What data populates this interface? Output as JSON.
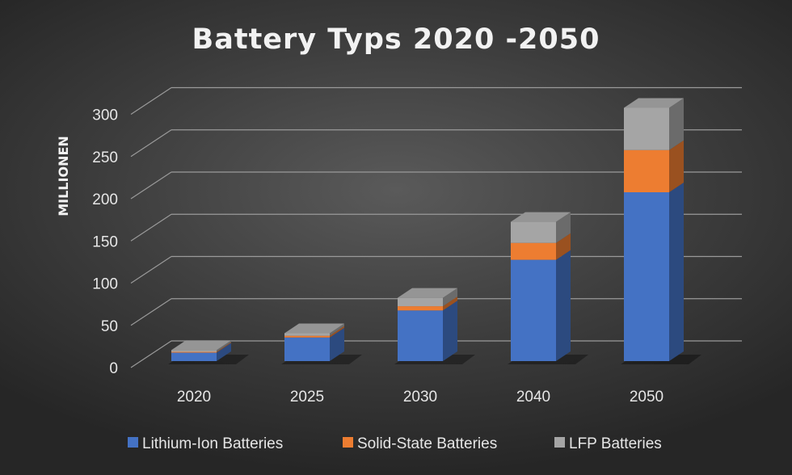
{
  "chart_data": {
    "type": "bar",
    "stacked": true,
    "three_d": true,
    "title": "Battery Typs 2020 -2050",
    "ylabel": "MILLIONEN",
    "xlabel": "",
    "categories": [
      "2020",
      "2025",
      "2030",
      "2040",
      "2050"
    ],
    "series": [
      {
        "name": "Lithium-Ion Batteries",
        "color": "#4472c4",
        "values": [
          10,
          28,
          60,
          120,
          200
        ]
      },
      {
        "name": "Solid-State Batteries",
        "color": "#ed7d31",
        "values": [
          1,
          2,
          5,
          20,
          50
        ]
      },
      {
        "name": "LFP Batteries",
        "color": "#a5a5a5",
        "values": [
          2,
          3,
          10,
          25,
          50
        ]
      }
    ],
    "yticks": [
      0,
      50,
      100,
      150,
      200,
      250,
      300
    ],
    "ylim": [
      0,
      320
    ],
    "grid": true,
    "legend_position": "bottom",
    "background_color": "#3c3c3c"
  }
}
